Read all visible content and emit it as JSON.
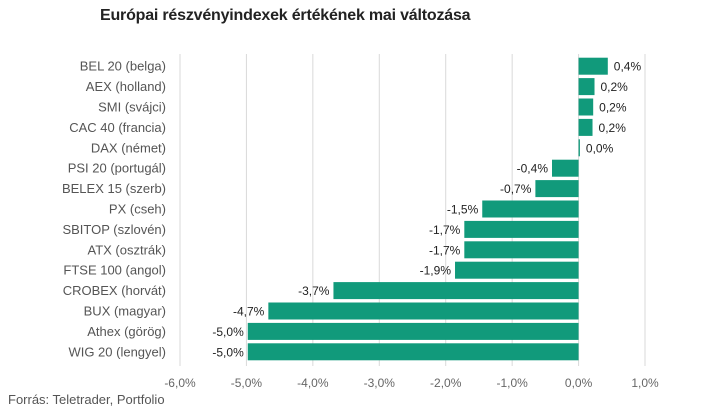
{
  "title": "Európai részvényindexek értékének mai változása",
  "source": "Forrás: Teletrader, Portfolio",
  "colors": {
    "bar": "#119a7b",
    "grid": "#d9d9d9"
  },
  "chart_data": {
    "type": "bar",
    "orientation": "horizontal",
    "title": "Európai részvényindexek értékének mai változása",
    "categories": [
      "BEL 20 (belga)",
      "AEX (holland)",
      "SMI (svájci)",
      "CAC 40 (francia)",
      "DAX (német)",
      "PSI 20 (portugál)",
      "BELEX 15 (szerb)",
      "PX (cseh)",
      "SBITOP (szlovén)",
      "ATX (osztrák)",
      "FTSE 100 (angol)",
      "CROBEX (horvát)",
      "BUX (magyar)",
      "Athex (görög)",
      "WIG 20 (lengyel)"
    ],
    "values": [
      0.44,
      0.24,
      0.22,
      0.21,
      0.02,
      -0.4,
      -0.65,
      -1.45,
      -1.72,
      -1.72,
      -1.86,
      -3.69,
      -4.67,
      -4.98,
      -4.98
    ],
    "value_labels": [
      "0,4%",
      "0,2%",
      "0,2%",
      "0,2%",
      "0,0%",
      "-0,4%",
      "-0,7%",
      "-1,5%",
      "-1,7%",
      "-1,7%",
      "-1,9%",
      "-3,7%",
      "-4,7%",
      "-5,0%",
      "-5,0%"
    ],
    "xlim": [
      -6.0,
      1.0
    ],
    "xticks": [
      -6,
      -5,
      -4,
      -3,
      -2,
      -1,
      0,
      1
    ],
    "xtick_labels": [
      "-6,0%",
      "-5,0%",
      "-4,0%",
      "-3,0%",
      "-2,0%",
      "-1,0%",
      "0,0%",
      "1,0%"
    ],
    "grid": true,
    "legend": false
  }
}
